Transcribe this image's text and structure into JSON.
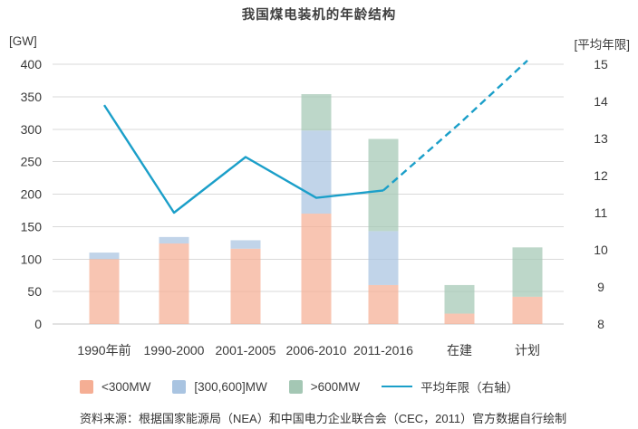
{
  "title": "我国煤电装机的年龄结构",
  "source_note": "资料来源：根据国家能源局（NEA）和中国电力企业联合会（CEC，2011）官方数据自行绘制",
  "chart_data": {
    "type": "bar",
    "subtype": "stacked-bars-with-line",
    "title": "我国煤电装机的年龄结构",
    "categories": [
      "1990年前",
      "1990-2000",
      "2001-2005",
      "2006-2010",
      "2011-2016",
      "在建",
      "计划"
    ],
    "left_axis": {
      "label": "[GW]",
      "ticks": [
        400,
        350,
        300,
        250,
        200,
        150,
        100,
        50,
        0
      ],
      "range": [
        0,
        400
      ]
    },
    "right_axis": {
      "label": "[平均年限]",
      "ticks": [
        15,
        14,
        13,
        12,
        11,
        10,
        9,
        8
      ],
      "range": [
        8,
        15
      ]
    },
    "series": [
      {
        "name": "<300MW",
        "type": "bar",
        "color": "#f5ae94",
        "values": [
          100,
          124,
          116,
          170,
          60,
          16,
          42
        ]
      },
      {
        "name": "[300,600]MW",
        "type": "bar",
        "color": "#a9c4e1",
        "values": [
          10,
          10,
          13,
          128,
          83,
          0,
          0
        ]
      },
      {
        "name": ">600MW",
        "type": "bar",
        "color": "#a4c7b4",
        "values": [
          0,
          0,
          0,
          56,
          142,
          44,
          76
        ]
      }
    ],
    "line_series": {
      "name": "平均年限（右轴）",
      "type": "line",
      "axis": "right",
      "color": "#1b9fc9",
      "values": [
        13.9,
        11.0,
        12.5,
        11.4,
        11.6,
        13.4,
        15.1
      ],
      "dashed_from_index": 4
    },
    "grid": true,
    "legend_position": "bottom",
    "colors": {
      "grid_line": "#d9d9d9",
      "axis_line": "#c6c6c6",
      "text": "#3a3a3a"
    }
  }
}
